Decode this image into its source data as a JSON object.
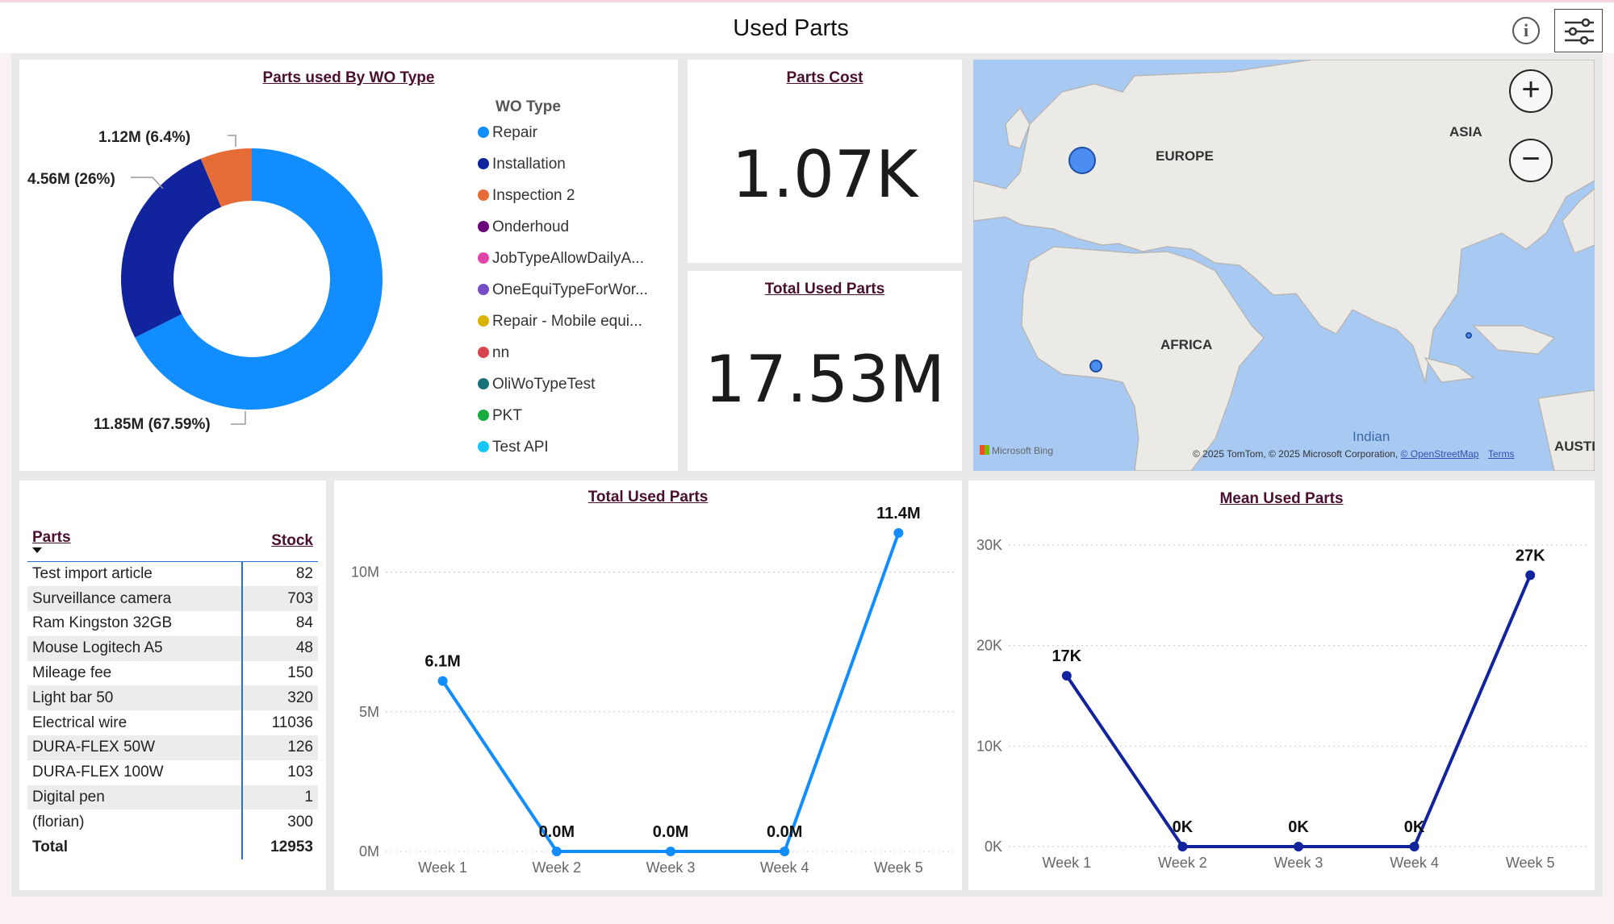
{
  "header": {
    "title": "Used Parts",
    "info_icon": "info-icon",
    "filter_icon": "filter-sliders-icon"
  },
  "donut": {
    "title": "Parts used By WO Type",
    "legend_title": "WO Type",
    "legend": [
      {
        "label": "Repair",
        "color": "#118dff"
      },
      {
        "label": "Installation",
        "color": "#12239e"
      },
      {
        "label": "Inspection 2",
        "color": "#e66c37"
      },
      {
        "label": "Onderhoud",
        "color": "#6b007b"
      },
      {
        "label": "JobTypeAllowDailyA...",
        "color": "#e044a7"
      },
      {
        "label": "OneEquiTypeForWor...",
        "color": "#744ec2"
      },
      {
        "label": "Repair - Mobile equi...",
        "color": "#d9b300"
      },
      {
        "label": "nn",
        "color": "#d64550"
      },
      {
        "label": "OliWoTypeTest",
        "color": "#197278"
      },
      {
        "label": "PKT",
        "color": "#1aab40"
      },
      {
        "label": "Test API",
        "color": "#15c6f4"
      }
    ],
    "labels": {
      "repair": "11.85M (67.59%)",
      "installation": "4.56M (26%)",
      "inspection": "1.12M (6.4%)"
    }
  },
  "kpi": {
    "cost": {
      "title": "Parts Cost",
      "value": "1.07K"
    },
    "total": {
      "title": "Total Used Parts",
      "value": "17.53M"
    }
  },
  "map": {
    "labels": {
      "europe": "EUROPE",
      "asia": "ASIA",
      "africa": "AFRICA",
      "indian": "Indian",
      "austr": "AUSTI"
    },
    "brand": "Microsoft Bing",
    "attribution": "© 2025 TomTom, © 2025 Microsoft Corporation,",
    "osm": "© OpenStreetMap",
    "terms": "Terms",
    "zoom_in": "+",
    "zoom_out": "−"
  },
  "table": {
    "headers": {
      "name": "Parts",
      "stock": "Stock"
    },
    "rows": [
      {
        "name": "Test import article",
        "stock": "82"
      },
      {
        "name": "Surveillance camera",
        "stock": "703"
      },
      {
        "name": "Ram Kingston 32GB",
        "stock": "84"
      },
      {
        "name": "Mouse Logitech A5",
        "stock": "48"
      },
      {
        "name": "Mileage fee",
        "stock": "150"
      },
      {
        "name": "Light bar 50",
        "stock": "320"
      },
      {
        "name": "Electrical wire",
        "stock": "11036"
      },
      {
        "name": "DURA-FLEX 50W",
        "stock": "126"
      },
      {
        "name": "DURA-FLEX 100W",
        "stock": "103"
      },
      {
        "name": "Digital pen",
        "stock": "1"
      },
      {
        "name": "(florian)",
        "stock": "300"
      }
    ],
    "total": {
      "name": "Total",
      "stock": "12953"
    }
  },
  "chart_data": [
    {
      "type": "pie",
      "title": "Parts used By WO Type",
      "categories": [
        "Repair",
        "Installation",
        "Inspection 2"
      ],
      "values": [
        11.85,
        4.56,
        1.12
      ],
      "colors": [
        "#118dff",
        "#12239e",
        "#e66c37"
      ]
    },
    {
      "type": "line",
      "title": "Total Used Parts",
      "categories": [
        "Week 1",
        "Week 2",
        "Week 3",
        "Week 4",
        "Week 5"
      ],
      "values": [
        6.1,
        0,
        0,
        0,
        11.4
      ],
      "data_labels": [
        "6.1M",
        "0.0M",
        "0.0M",
        "0.0M",
        "11.4M"
      ],
      "yticks": [
        "0M",
        "5M",
        "10M"
      ],
      "ylim": [
        0,
        11.4
      ],
      "color": "#118dff"
    },
    {
      "type": "line",
      "title": "Mean Used Parts",
      "categories": [
        "Week 1",
        "Week 2",
        "Week 3",
        "Week 4",
        "Week 5"
      ],
      "values": [
        17,
        0,
        0,
        0,
        27
      ],
      "data_labels": [
        "17K",
        "0K",
        "0K",
        "0K",
        "27K"
      ],
      "yticks": [
        "0K",
        "10K",
        "20K",
        "30K"
      ],
      "ylim": [
        0,
        30
      ],
      "color": "#12239e"
    }
  ]
}
